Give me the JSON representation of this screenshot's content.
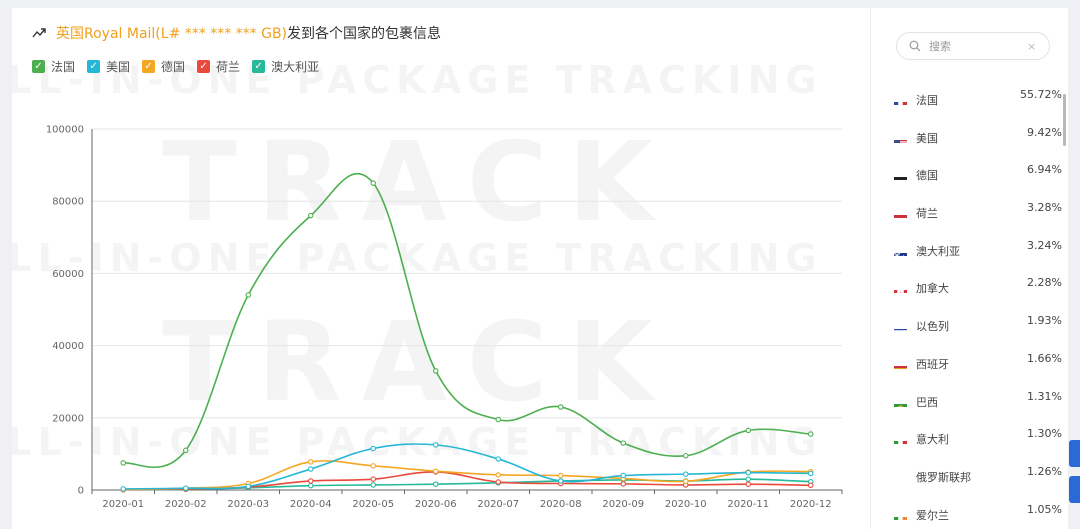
{
  "header": {
    "title_link": "英国Royal Mail(L# *** *** *** GB)",
    "title_rest": "发到各个国家的包裹信息",
    "icon": "trending-up-icon"
  },
  "watermark": {
    "line1": "ALL-IN-ONE PACKAGE TRACKING",
    "line2": "TRACK"
  },
  "colors": {
    "france": "#4caf50",
    "usa": "#26b7d4",
    "germany": "#f5a623",
    "netherlands": "#e84a3c",
    "australia": "#26b99a",
    "accent": "#f0a020",
    "button": "#2a6ad8"
  },
  "chart_data": {
    "type": "line",
    "categories": [
      "2020-01",
      "2020-02",
      "2020-03",
      "2020-04",
      "2020-05",
      "2020-06",
      "2020-07",
      "2020-08",
      "2020-09",
      "2020-10",
      "2020-11",
      "2020-12"
    ],
    "y_ticks": [
      "0",
      "20000",
      "40000",
      "60000",
      "80000",
      "100000"
    ],
    "ylim": [
      0,
      100000
    ],
    "grid": true,
    "legend_position": "top-left",
    "series": [
      {
        "name": "法国",
        "color": "#4caf50",
        "values": [
          7500,
          11000,
          54000,
          76000,
          85000,
          33000,
          19500,
          23000,
          13000,
          9500,
          16500,
          15500
        ]
      },
      {
        "name": "美国",
        "color": "#26b7d4",
        "values": [
          300,
          500,
          1000,
          5800,
          11500,
          12500,
          8600,
          2500,
          4000,
          4400,
          4800,
          4600
        ]
      },
      {
        "name": "德国",
        "color": "#f5a623",
        "values": [
          200,
          500,
          1800,
          7800,
          6700,
          5200,
          4200,
          4000,
          3200,
          2400,
          5000,
          5100
        ]
      },
      {
        "name": "荷兰",
        "color": "#e84a3c",
        "values": [
          100,
          300,
          800,
          2500,
          3000,
          5000,
          2200,
          1800,
          1700,
          1400,
          1600,
          1300
        ]
      },
      {
        "name": "澳大利亚",
        "color": "#26b99a",
        "values": [
          100,
          200,
          600,
          1200,
          1400,
          1600,
          2000,
          2500,
          2800,
          2500,
          3000,
          2300
        ]
      }
    ]
  },
  "search": {
    "placeholder": "搜索",
    "clear": "×"
  },
  "countries": [
    {
      "name": "法国",
      "pct": "55.72%",
      "flag": "france"
    },
    {
      "name": "美国",
      "pct": "9.42%",
      "flag": "usa"
    },
    {
      "name": "德国",
      "pct": "6.94%",
      "flag": "germany"
    },
    {
      "name": "荷兰",
      "pct": "3.28%",
      "flag": "netherlands"
    },
    {
      "name": "澳大利亚",
      "pct": "3.24%",
      "flag": "australia"
    },
    {
      "name": "加拿大",
      "pct": "2.28%",
      "flag": "canada"
    },
    {
      "name": "以色列",
      "pct": "1.93%",
      "flag": "israel"
    },
    {
      "name": "西班牙",
      "pct": "1.66%",
      "flag": "spain"
    },
    {
      "name": "巴西",
      "pct": "1.31%",
      "flag": "brazil"
    },
    {
      "name": "意大利",
      "pct": "1.30%",
      "flag": "italy"
    },
    {
      "name": "俄罗斯联邦",
      "pct": "1.26%",
      "flag": "russia"
    },
    {
      "name": "爱尔兰",
      "pct": "1.05%",
      "flag": "ireland"
    }
  ]
}
